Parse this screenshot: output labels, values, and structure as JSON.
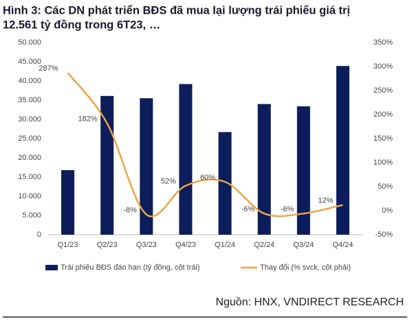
{
  "chart_data": {
    "type": "bar-line",
    "title": "Hình 3: Các DN phát triển BĐS đã mua lại lượng trái phiếu giá trị",
    "title_line2": "12.561 tỷ đồng trong 6T23, …",
    "source": "Nguồn: HNX, VNDIRECT RESEARCH",
    "categories": [
      "Q1/23",
      "Q2/23",
      "Q3/23",
      "Q4/23",
      "Q1/24",
      "Q2/24",
      "Q3/24",
      "Q4/24"
    ],
    "series": [
      {
        "name": "Trái phiếu BĐS đáo hạn (tỷ đồng, cột trái)",
        "color": "#0b1d5a",
        "type": "bar",
        "values": [
          16800,
          36100,
          35500,
          39200,
          26700,
          34000,
          33400,
          43900
        ]
      },
      {
        "name": "Thay đổi (% svck, cột phải)",
        "color": "#f0a340",
        "type": "line",
        "axis": "y2",
        "smooth": true,
        "values": [
          287,
          182,
          -8,
          52,
          60,
          -6,
          -6,
          12
        ],
        "value_labels": [
          "287%",
          "182%",
          "-8%",
          "52%",
          "60%",
          "-6%",
          "-6%",
          "12%"
        ]
      }
    ],
    "ylim": [
      0,
      50000
    ],
    "yticks": [
      0,
      {
        "value": 5000,
        "label": "5.000"
      },
      {
        "value": 10000,
        "label": "10.000"
      },
      {
        "value": 15000,
        "label": "15.000"
      },
      {
        "value": 20000,
        "label": "20.000"
      },
      {
        "value": 25000,
        "label": "25.000"
      },
      {
        "value": 30000,
        "label": "30.000"
      },
      {
        "value": 35000,
        "label": "35.000"
      },
      {
        "value": 40000,
        "label": "40.000"
      },
      {
        "value": 45000,
        "label": "45.000"
      },
      {
        "value": 50000,
        "label": "50.000"
      }
    ],
    "y2lim": [
      -50,
      350
    ],
    "y2ticks": [
      {
        "value": -50,
        "label": "-50%"
      },
      {
        "value": 0,
        "label": "0%"
      },
      {
        "value": 50,
        "label": "50%"
      },
      {
        "value": 100,
        "label": "100%"
      },
      {
        "value": 150,
        "label": "150%"
      },
      {
        "value": 200,
        "label": "200%"
      },
      {
        "value": 250,
        "label": "250%"
      },
      {
        "value": 300,
        "label": "300%"
      },
      {
        "value": 350,
        "label": "350%"
      }
    ],
    "legend": "bottom"
  }
}
